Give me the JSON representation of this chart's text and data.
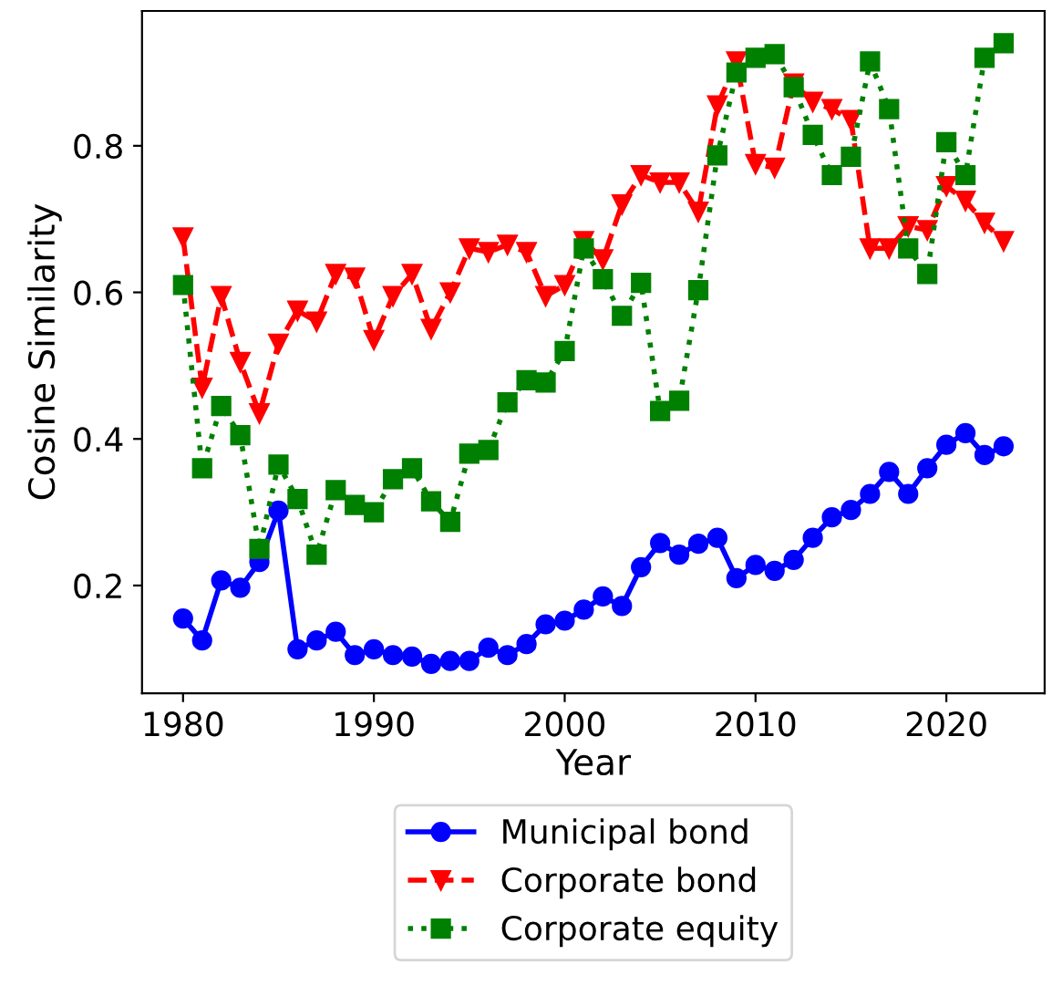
{
  "chart_data": {
    "type": "line",
    "xlabel": "Year",
    "ylabel": "Cosine Similarity",
    "legend": "bottom",
    "grid": false,
    "x": [
      1980,
      1981,
      1982,
      1983,
      1984,
      1985,
      1986,
      1987,
      1988,
      1989,
      1990,
      1991,
      1992,
      1993,
      1994,
      1995,
      1996,
      1997,
      1998,
      1999,
      2000,
      2001,
      2002,
      2003,
      2004,
      2005,
      2006,
      2007,
      2008,
      2009,
      2010,
      2011,
      2012,
      2013,
      2014,
      2015,
      2016,
      2017,
      2018,
      2019,
      2020,
      2021,
      2022,
      2023
    ],
    "xlim": [
      1977.85,
      2025.15
    ],
    "xticks": [
      1980,
      1990,
      2000,
      2010,
      2020
    ],
    "ylim": [
      0.053,
      0.984
    ],
    "yticks": [
      0.2,
      0.4,
      0.6,
      0.8
    ],
    "series": [
      {
        "name": "Municipal bond",
        "color": "#0000ff",
        "marker": "circle",
        "line_style": "solid",
        "values": [
          0.155,
          0.125,
          0.207,
          0.197,
          0.232,
          0.302,
          0.113,
          0.125,
          0.137,
          0.105,
          0.113,
          0.105,
          0.103,
          0.093,
          0.097,
          0.097,
          0.115,
          0.105,
          0.12,
          0.147,
          0.152,
          0.167,
          0.185,
          0.172,
          0.225,
          0.258,
          0.242,
          0.257,
          0.265,
          0.21,
          0.228,
          0.22,
          0.235,
          0.265,
          0.293,
          0.303,
          0.325,
          0.355,
          0.325,
          0.36,
          0.392,
          0.408,
          0.378,
          0.39
        ]
      },
      {
        "name": "Corporate bond",
        "color": "#ff0000",
        "marker": "triangle",
        "line_style": "dashed",
        "values": [
          0.675,
          0.47,
          0.595,
          0.505,
          0.435,
          0.53,
          0.575,
          0.56,
          0.625,
          0.62,
          0.535,
          0.595,
          0.625,
          0.55,
          0.6,
          0.66,
          0.655,
          0.665,
          0.655,
          0.595,
          0.61,
          0.67,
          0.645,
          0.72,
          0.76,
          0.75,
          0.75,
          0.71,
          0.855,
          0.915,
          0.775,
          0.77,
          0.885,
          0.86,
          0.85,
          0.835,
          0.66,
          0.66,
          0.69,
          0.685,
          0.745,
          0.725,
          0.695,
          0.67
        ]
      },
      {
        "name": "Corporate equity",
        "color": "#008000",
        "marker": "square",
        "line_style": "dotted",
        "values": [
          0.61,
          0.36,
          0.445,
          0.405,
          0.25,
          0.365,
          0.318,
          0.242,
          0.33,
          0.31,
          0.3,
          0.345,
          0.36,
          0.315,
          0.287,
          0.38,
          0.385,
          0.45,
          0.48,
          0.477,
          0.52,
          0.66,
          0.618,
          0.568,
          0.613,
          0.438,
          0.452,
          0.603,
          0.787,
          0.9,
          0.92,
          0.925,
          0.88,
          0.815,
          0.76,
          0.785,
          0.915,
          0.85,
          0.66,
          0.625,
          0.805,
          0.76,
          0.92,
          0.94
        ]
      }
    ]
  }
}
